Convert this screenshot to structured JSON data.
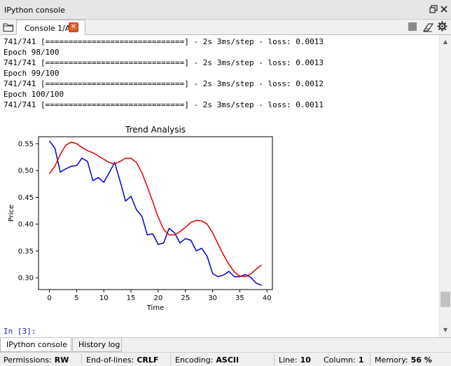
{
  "pane": {
    "title": "IPython console"
  },
  "tab": {
    "label": "Console 1/A",
    "close_glyph": "✕"
  },
  "icons": {
    "folder": "folder-icon",
    "close": "close-icon",
    "stop": "stop-icon",
    "eraser": "eraser-icon",
    "gear": "gear-icon",
    "undock": "undock-icon",
    "pane_close": "pane-close-icon"
  },
  "console": {
    "lines": [
      "741/741 [==============================] - 2s 3ms/step - loss: 0.0013",
      "Epoch 98/100",
      "741/741 [==============================] - 2s 3ms/step - loss: 0.0013",
      "Epoch 99/100",
      "741/741 [==============================] - 2s 3ms/step - loss: 0.0012",
      "Epoch 100/100",
      "741/741 [==============================] - 2s 3ms/step - loss: 0.0011"
    ],
    "prompt": "In [3]:"
  },
  "chart_data": {
    "type": "line",
    "title": "Trend Analysis",
    "xlabel": "Time",
    "ylabel": "Price",
    "xlim": [
      -2.0,
      41.0
    ],
    "ylim": [
      0.278,
      0.563
    ],
    "xticks": [
      0,
      5,
      10,
      15,
      20,
      25,
      30,
      35,
      40
    ],
    "yticks": [
      0.3,
      0.35,
      0.4,
      0.45,
      0.5,
      0.55
    ],
    "grid": false,
    "x": [
      0,
      1,
      2,
      3,
      4,
      5,
      6,
      7,
      8,
      9,
      10,
      11,
      12,
      13,
      14,
      15,
      16,
      17,
      18,
      19,
      20,
      21,
      22,
      23,
      24,
      25,
      26,
      27,
      28,
      29,
      30,
      31,
      32,
      33,
      34,
      35,
      36,
      37,
      38,
      39
    ],
    "series": [
      {
        "color": "#0000cc",
        "values": [
          0.555,
          0.542,
          0.497,
          0.503,
          0.508,
          0.509,
          0.523,
          0.517,
          0.481,
          0.487,
          0.478,
          0.496,
          0.515,
          0.48,
          0.443,
          0.452,
          0.427,
          0.415,
          0.38,
          0.382,
          0.362,
          0.365,
          0.392,
          0.384,
          0.365,
          0.373,
          0.37,
          0.35,
          0.355,
          0.34,
          0.308,
          0.302,
          0.305,
          0.312,
          0.302,
          0.302,
          0.306,
          0.301,
          0.29,
          0.286
        ]
      },
      {
        "color": "#e00000",
        "values": [
          0.494,
          0.508,
          0.53,
          0.547,
          0.553,
          0.55,
          0.543,
          0.537,
          0.533,
          0.527,
          0.521,
          0.515,
          0.512,
          0.517,
          0.523,
          0.523,
          0.515,
          0.496,
          0.47,
          0.442,
          0.413,
          0.39,
          0.38,
          0.38,
          0.386,
          0.394,
          0.403,
          0.407,
          0.406,
          0.4,
          0.384,
          0.363,
          0.343,
          0.325,
          0.311,
          0.303,
          0.302,
          0.307,
          0.316,
          0.324
        ]
      }
    ]
  },
  "bottom_tabs": [
    {
      "label": "IPython console"
    },
    {
      "label": "History log"
    }
  ],
  "status": {
    "permissions_label": "Permissions:",
    "permissions_value": "RW",
    "eol_label": "End-of-lines:",
    "eol_value": "CRLF",
    "encoding_label": "Encoding:",
    "encoding_value": "ASCII",
    "line_label": "Line:",
    "line_value": "10",
    "column_label": "Column:",
    "column_value": "1",
    "memory_label": "Memory:",
    "memory_value": "56 %"
  }
}
